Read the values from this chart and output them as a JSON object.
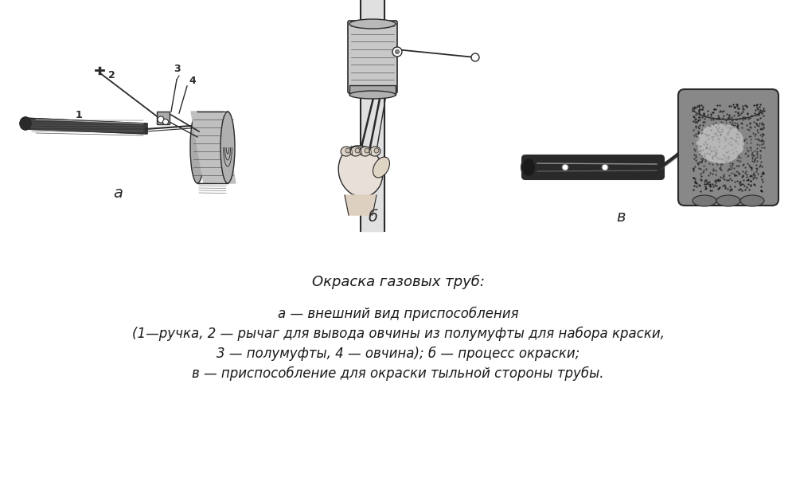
{
  "bg_color": "#ffffff",
  "title_text": "Окраска газовых труб:",
  "line1": "а — внешний вид приспособления",
  "line2": "(1—ручка, 2 — рычаг для вывода овчины из полумуфты для набора краски,",
  "line3": "3 — полумуфты, 4 — овчина); б — процесс окраски;",
  "line4": "в — приспособление для окраски тыльной стороны трубы.",
  "label_a": "а",
  "label_b": "б",
  "label_v": "в",
  "font_size_title": 13,
  "font_size_body": 12,
  "text_color": "#1a1a1a",
  "ink_color": "#2a2a2a",
  "mid_gray": "#888888",
  "light_gray": "#cccccc",
  "dark_gray": "#444444"
}
